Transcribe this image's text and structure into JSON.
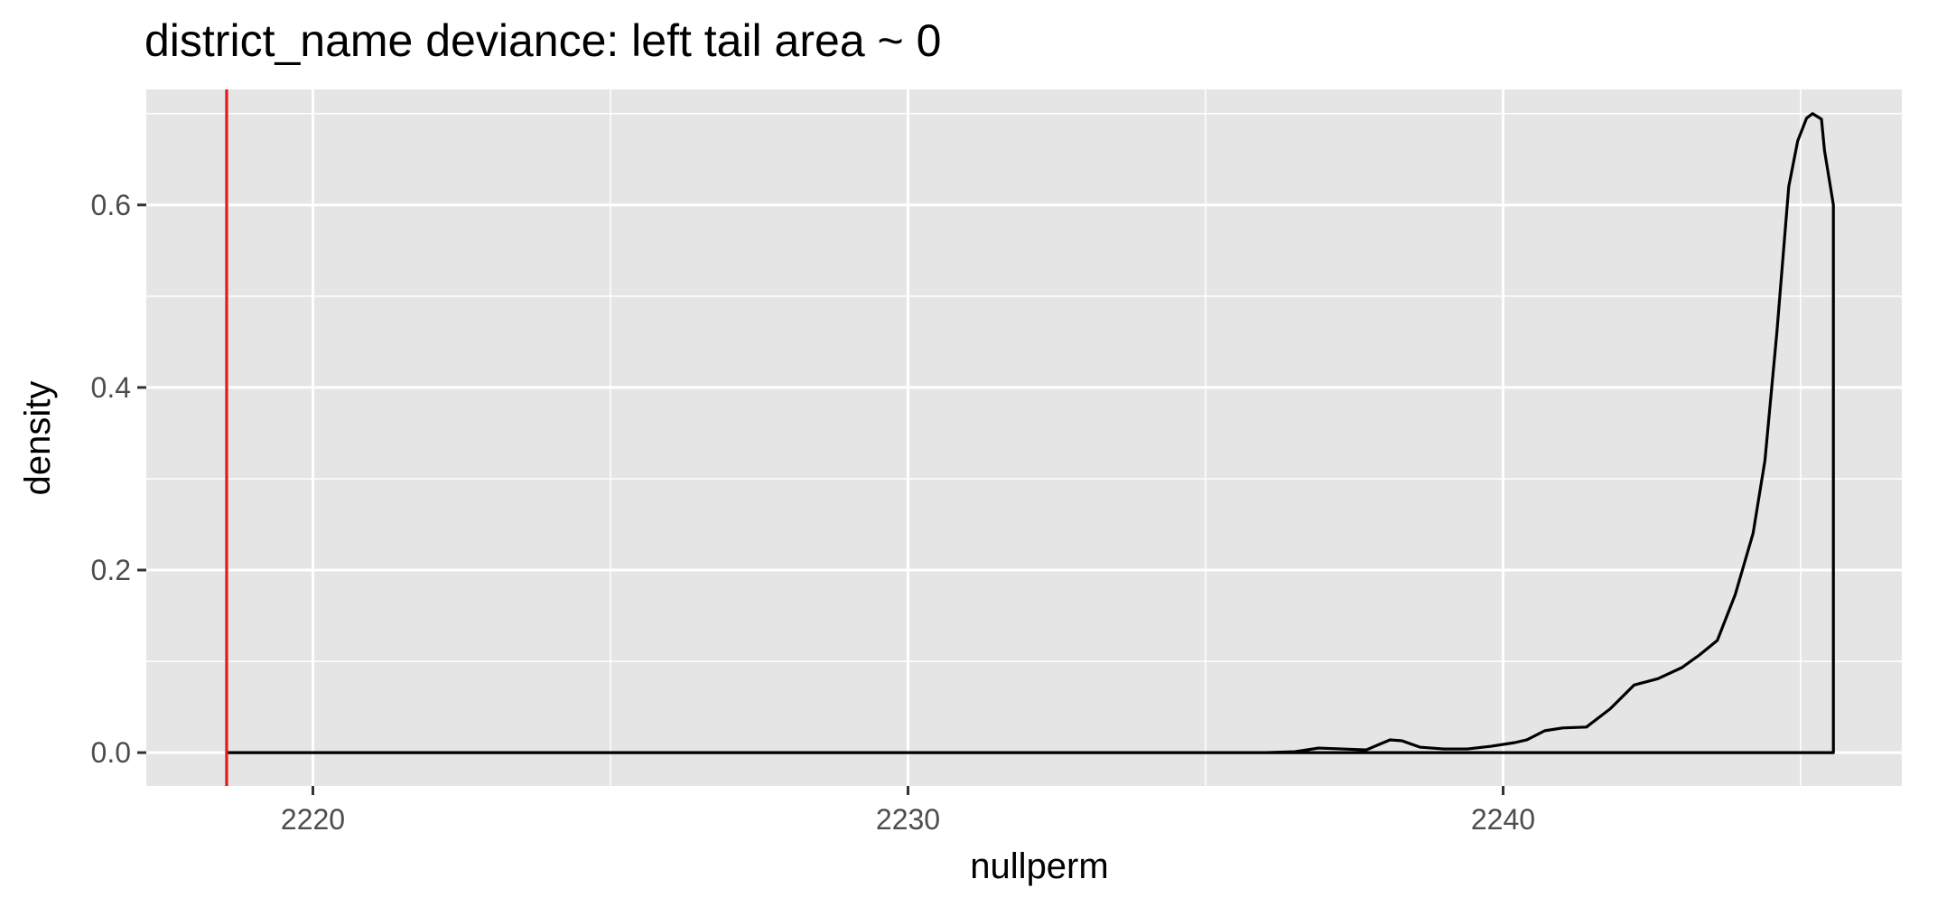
{
  "chart_data": {
    "type": "line",
    "title": "district_name deviance: left tail area ~ 0",
    "xlabel": "nullperm",
    "ylabel": "density",
    "xlim": [
      2217.2,
      2246.7
    ],
    "ylim": [
      -0.0365,
      0.7265
    ],
    "x_ticks": [
      2220,
      2230,
      2240
    ],
    "x_tick_labels": [
      "2220",
      "2230",
      "2240"
    ],
    "x_minor_ticks": [
      2225,
      2235,
      2245
    ],
    "y_ticks": [
      0.0,
      0.2,
      0.4,
      0.6
    ],
    "y_tick_labels": [
      "0.0",
      "0.2",
      "0.4",
      "0.6"
    ],
    "y_minor_ticks": [
      0.1,
      0.3,
      0.5,
      0.7
    ],
    "grid": true,
    "background": "#e5e5e5",
    "series": [
      {
        "color": "#000000",
        "closed_polygon": true,
        "x": [
          2218.55,
          2236.0,
          2236.5,
          2236.9,
          2237.3,
          2237.7,
          2238.1,
          2238.3,
          2238.6,
          2239.0,
          2239.4,
          2239.8,
          2240.2,
          2240.4,
          2240.7,
          2241.0,
          2241.4,
          2241.8,
          2242.2,
          2242.6,
          2243.0,
          2243.3,
          2243.6,
          2243.9,
          2244.2,
          2244.4,
          2244.6,
          2244.8,
          2244.95,
          2245.1,
          2245.2,
          2245.35,
          2245.4,
          2245.55,
          2245.55
        ],
        "y": [
          0.0,
          0.0,
          0.001,
          0.005,
          0.004,
          0.003,
          0.014,
          0.013,
          0.006,
          0.004,
          0.004,
          0.007,
          0.011,
          0.014,
          0.024,
          0.027,
          0.028,
          0.048,
          0.074,
          0.081,
          0.093,
          0.107,
          0.123,
          0.173,
          0.24,
          0.32,
          0.46,
          0.62,
          0.67,
          0.695,
          0.7,
          0.694,
          0.66,
          0.6,
          0.0
        ]
      }
    ],
    "vline": {
      "x": 2218.55,
      "color": "#e41a1c"
    }
  }
}
